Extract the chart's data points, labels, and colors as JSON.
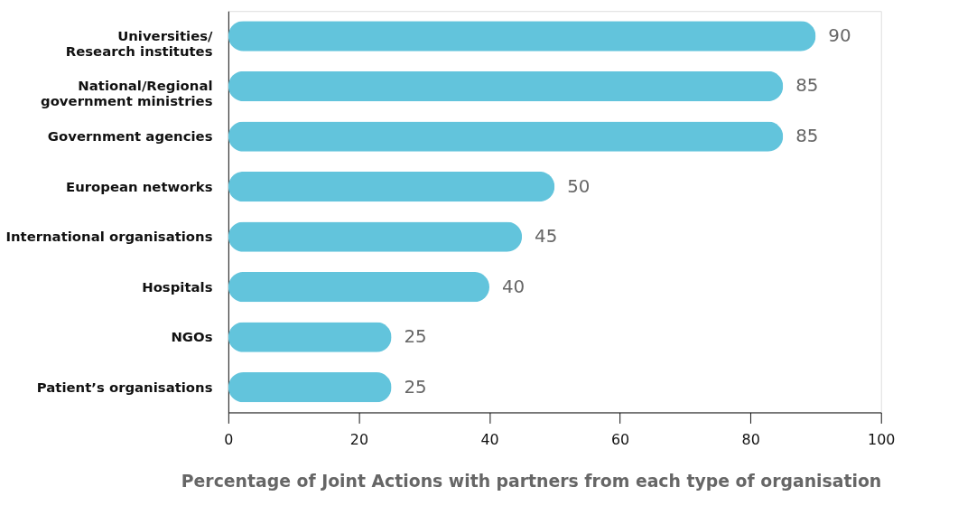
{
  "chart_data": {
    "type": "bar",
    "orientation": "horizontal",
    "categories": [
      "Universities/\nResearch institutes",
      "National/Regional\ngovernment ministries",
      "Government agencies",
      "European networks",
      "International organisations",
      "Hospitals",
      "NGOs",
      "Patient’s organisations"
    ],
    "values": [
      90,
      85,
      85,
      50,
      45,
      40,
      25,
      25
    ],
    "color": "#62c4dc",
    "xlim": [
      0,
      100
    ],
    "xticks": [
      0,
      20,
      40,
      60,
      80,
      100
    ],
    "xlabel": "Percentage of Joint Actions with partners from each type of organisation",
    "data_labels": true,
    "grid": false
  }
}
